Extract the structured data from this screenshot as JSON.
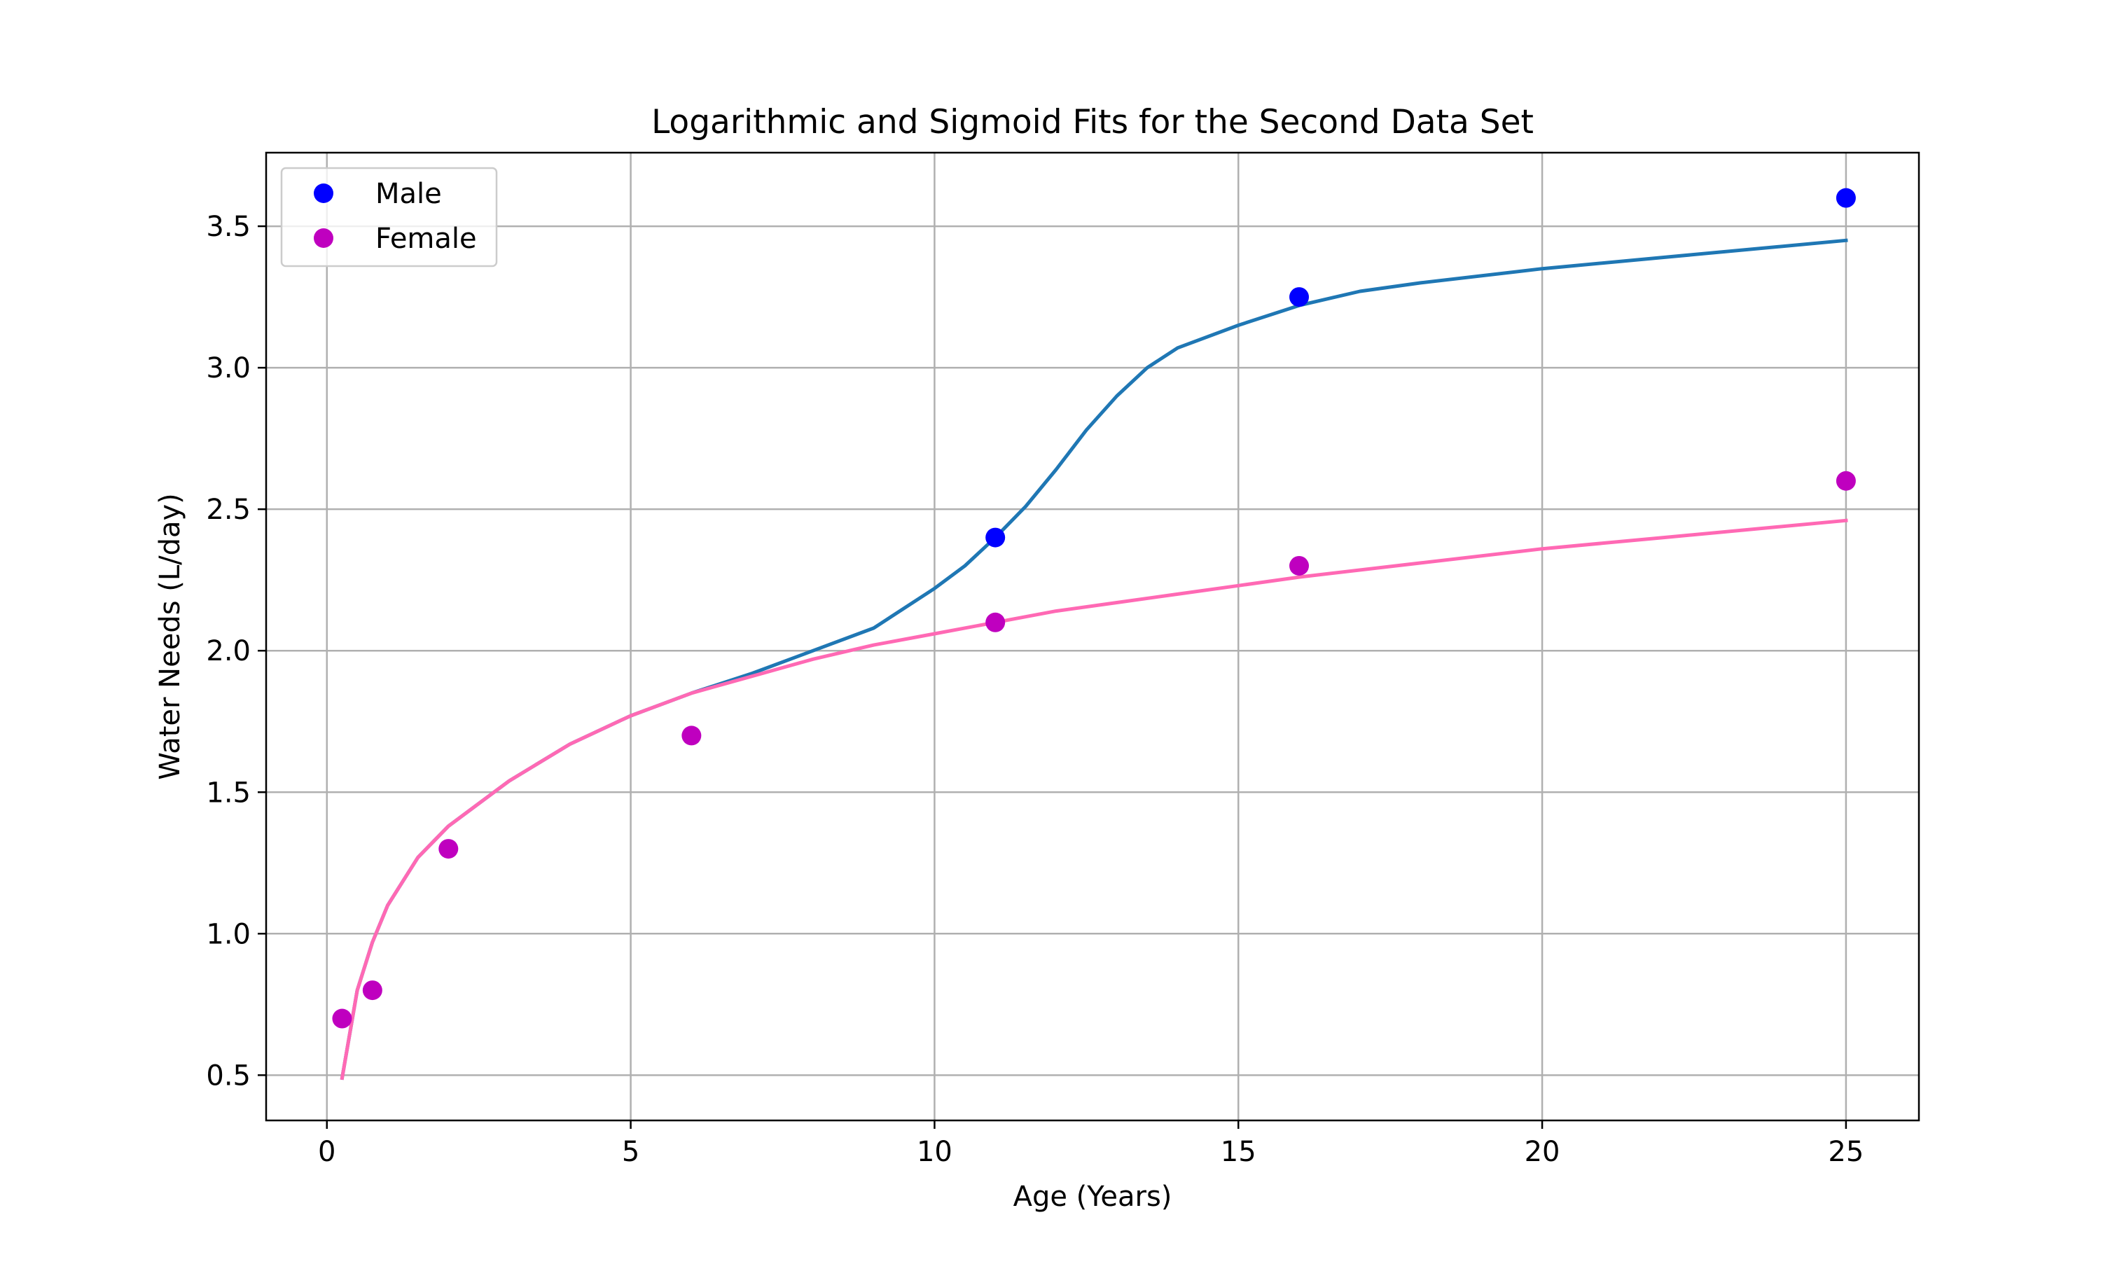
{
  "chart_data": {
    "type": "scatter",
    "title": "Logarithmic and Sigmoid Fits for the Second Data Set",
    "xlabel": "Age (Years)",
    "ylabel": "Water Needs (L/day)",
    "xlim": [
      -1,
      26.2
    ],
    "ylim": [
      0.34,
      3.76
    ],
    "xticks": [
      0,
      5,
      10,
      15,
      20,
      25
    ],
    "yticks": [
      0.5,
      1.0,
      1.5,
      2.0,
      2.5,
      3.0,
      3.5
    ],
    "xtick_labels": [
      "0",
      "5",
      "10",
      "15",
      "20",
      "25"
    ],
    "ytick_labels": [
      "0.5",
      "1.0",
      "1.5",
      "2.0",
      "2.5",
      "3.0",
      "3.5"
    ],
    "grid": true,
    "legend_position": "top-left",
    "series": [
      {
        "name": "Male",
        "kind": "points",
        "color": "#0000ff",
        "x": [
          11,
          16,
          25
        ],
        "y": [
          2.4,
          3.25,
          3.6
        ]
      },
      {
        "name": "Female",
        "kind": "points",
        "color": "#bf00bf",
        "x": [
          0.25,
          0.75,
          2,
          6,
          11,
          16,
          25
        ],
        "y": [
          0.7,
          0.8,
          1.3,
          1.7,
          2.1,
          2.3,
          2.6
        ]
      }
    ],
    "fit_curves": [
      {
        "kind": "line",
        "color": "#1f77b4",
        "x": [
          0.25,
          0.5,
          0.75,
          1,
          1.5,
          2,
          3,
          4,
          5,
          6,
          7,
          8,
          9,
          10,
          10.5,
          11,
          11.5,
          12,
          12.5,
          13,
          13.5,
          14,
          15,
          16,
          17,
          18,
          20,
          22,
          25
        ],
        "y": [
          0.49,
          0.8,
          0.97,
          1.1,
          1.27,
          1.38,
          1.54,
          1.67,
          1.77,
          1.85,
          1.92,
          2.0,
          2.08,
          2.22,
          2.3,
          2.4,
          2.51,
          2.64,
          2.78,
          2.9,
          3.0,
          3.07,
          3.15,
          3.22,
          3.27,
          3.3,
          3.35,
          3.39,
          3.45
        ]
      },
      {
        "kind": "line",
        "color": "#ff69b4",
        "x": [
          0.25,
          0.5,
          0.75,
          1,
          1.5,
          2,
          3,
          4,
          5,
          6,
          7,
          8,
          9,
          10,
          11,
          12,
          13,
          14,
          15,
          16,
          18,
          20,
          22,
          25
        ],
        "y": [
          0.49,
          0.8,
          0.97,
          1.1,
          1.27,
          1.38,
          1.54,
          1.67,
          1.77,
          1.85,
          1.91,
          1.97,
          2.02,
          2.06,
          2.1,
          2.14,
          2.17,
          2.2,
          2.23,
          2.26,
          2.31,
          2.36,
          2.4,
          2.46
        ]
      }
    ]
  }
}
